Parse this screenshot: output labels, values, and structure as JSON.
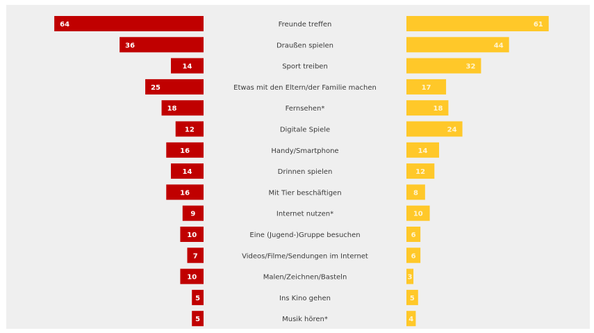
{
  "chart_data": {
    "type": "bar",
    "orientation": "horizontal",
    "layout": "diverging-back-to-back",
    "categories": [
      "Freunde treffen",
      "Draußen spielen",
      "Sport treiben",
      "Etwas mit den Eltern/der Familie machen",
      "Fernsehen*",
      "Digitale Spiele",
      "Handy/Smartphone",
      "Drinnen spielen",
      "Mit Tier beschäftigen",
      "Internet nutzen*",
      "Eine (Jugend-)Gruppe besuchen",
      "Videos/Filme/Sendungen im Internet",
      "Malen/Zeichnen/Basteln",
      "Ins Kino gehen",
      "Musik hören*"
    ],
    "series": [
      {
        "side": "left",
        "color": "#c00000",
        "label_color": "#ffffff",
        "values": [
          64,
          36,
          14,
          25,
          18,
          12,
          16,
          14,
          16,
          9,
          10,
          7,
          10,
          5,
          5
        ]
      },
      {
        "side": "right",
        "color": "#ffc829",
        "label_color": "#fff4cf",
        "values": [
          61,
          44,
          32,
          17,
          18,
          24,
          14,
          12,
          8,
          10,
          6,
          6,
          3,
          5,
          4
        ]
      }
    ]
  }
}
